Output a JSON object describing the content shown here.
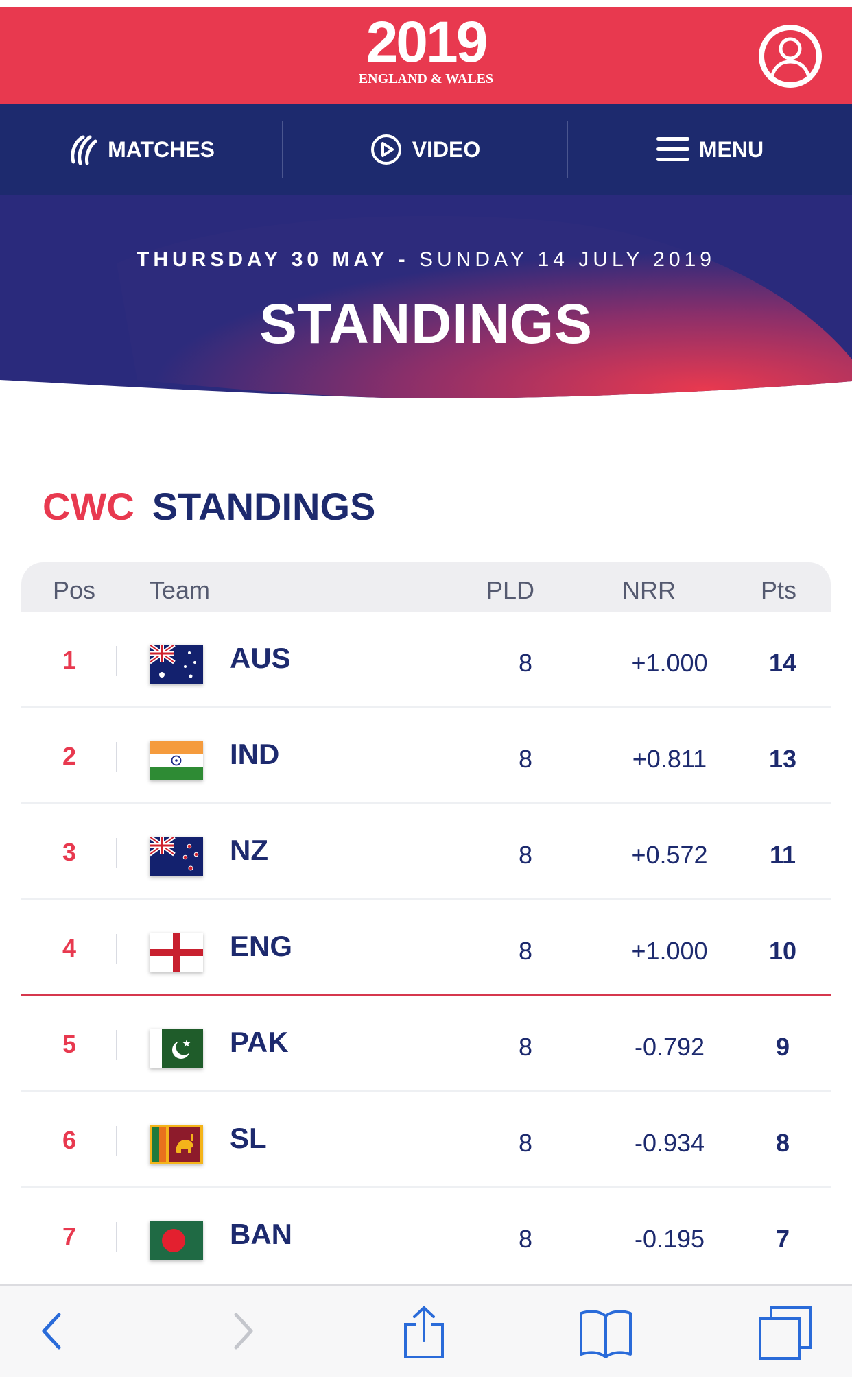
{
  "header": {
    "logo_year": "2019",
    "logo_subtitle": "ENGLAND & WALES",
    "account_icon": "user-account-icon"
  },
  "nav": {
    "items": [
      {
        "label": "MATCHES",
        "icon": "cricket-ball-icon"
      },
      {
        "label": "VIDEO",
        "icon": "play-icon"
      },
      {
        "label": "MENU",
        "icon": "hamburger-menu-icon"
      }
    ]
  },
  "hero": {
    "date_start": "THURSDAY 30 MAY",
    "date_dash": "-",
    "date_end": "SUNDAY 14 JULY 2019",
    "title": "STANDINGS"
  },
  "section": {
    "heading_prefix": "CWC",
    "heading_main": "STANDINGS"
  },
  "table": {
    "headers": {
      "pos": "Pos",
      "team": "Team",
      "pld": "PLD",
      "nrr": "NRR",
      "pts": "Pts"
    },
    "rows": [
      {
        "pos": "1",
        "team": "AUS",
        "pld": "8",
        "nrr": "+1.000",
        "pts": "14",
        "flag": "australia-flag-icon"
      },
      {
        "pos": "2",
        "team": "IND",
        "pld": "8",
        "nrr": "+0.811",
        "pts": "13",
        "flag": "india-flag-icon"
      },
      {
        "pos": "3",
        "team": "NZ",
        "pld": "8",
        "nrr": "+0.572",
        "pts": "11",
        "flag": "new-zealand-flag-icon"
      },
      {
        "pos": "4",
        "team": "ENG",
        "pld": "8",
        "nrr": "+1.000",
        "pts": "10",
        "flag": "england-flag-icon"
      },
      {
        "pos": "5",
        "team": "PAK",
        "pld": "8",
        "nrr": "-0.792",
        "pts": "9",
        "flag": "pakistan-flag-icon"
      },
      {
        "pos": "6",
        "team": "SL",
        "pld": "8",
        "nrr": "-0.934",
        "pts": "8",
        "flag": "sri-lanka-flag-icon"
      },
      {
        "pos": "7",
        "team": "BAN",
        "pld": "8",
        "nrr": "-0.195",
        "pts": "7",
        "flag": "bangladesh-flag-icon"
      }
    ]
  },
  "colors": {
    "brand_red": "#e8394f",
    "brand_navy": "#1d2a6e"
  },
  "browser_toolbar": {
    "icons": [
      "back-icon",
      "forward-icon",
      "share-icon",
      "bookmarks-icon",
      "tabs-icon"
    ]
  }
}
